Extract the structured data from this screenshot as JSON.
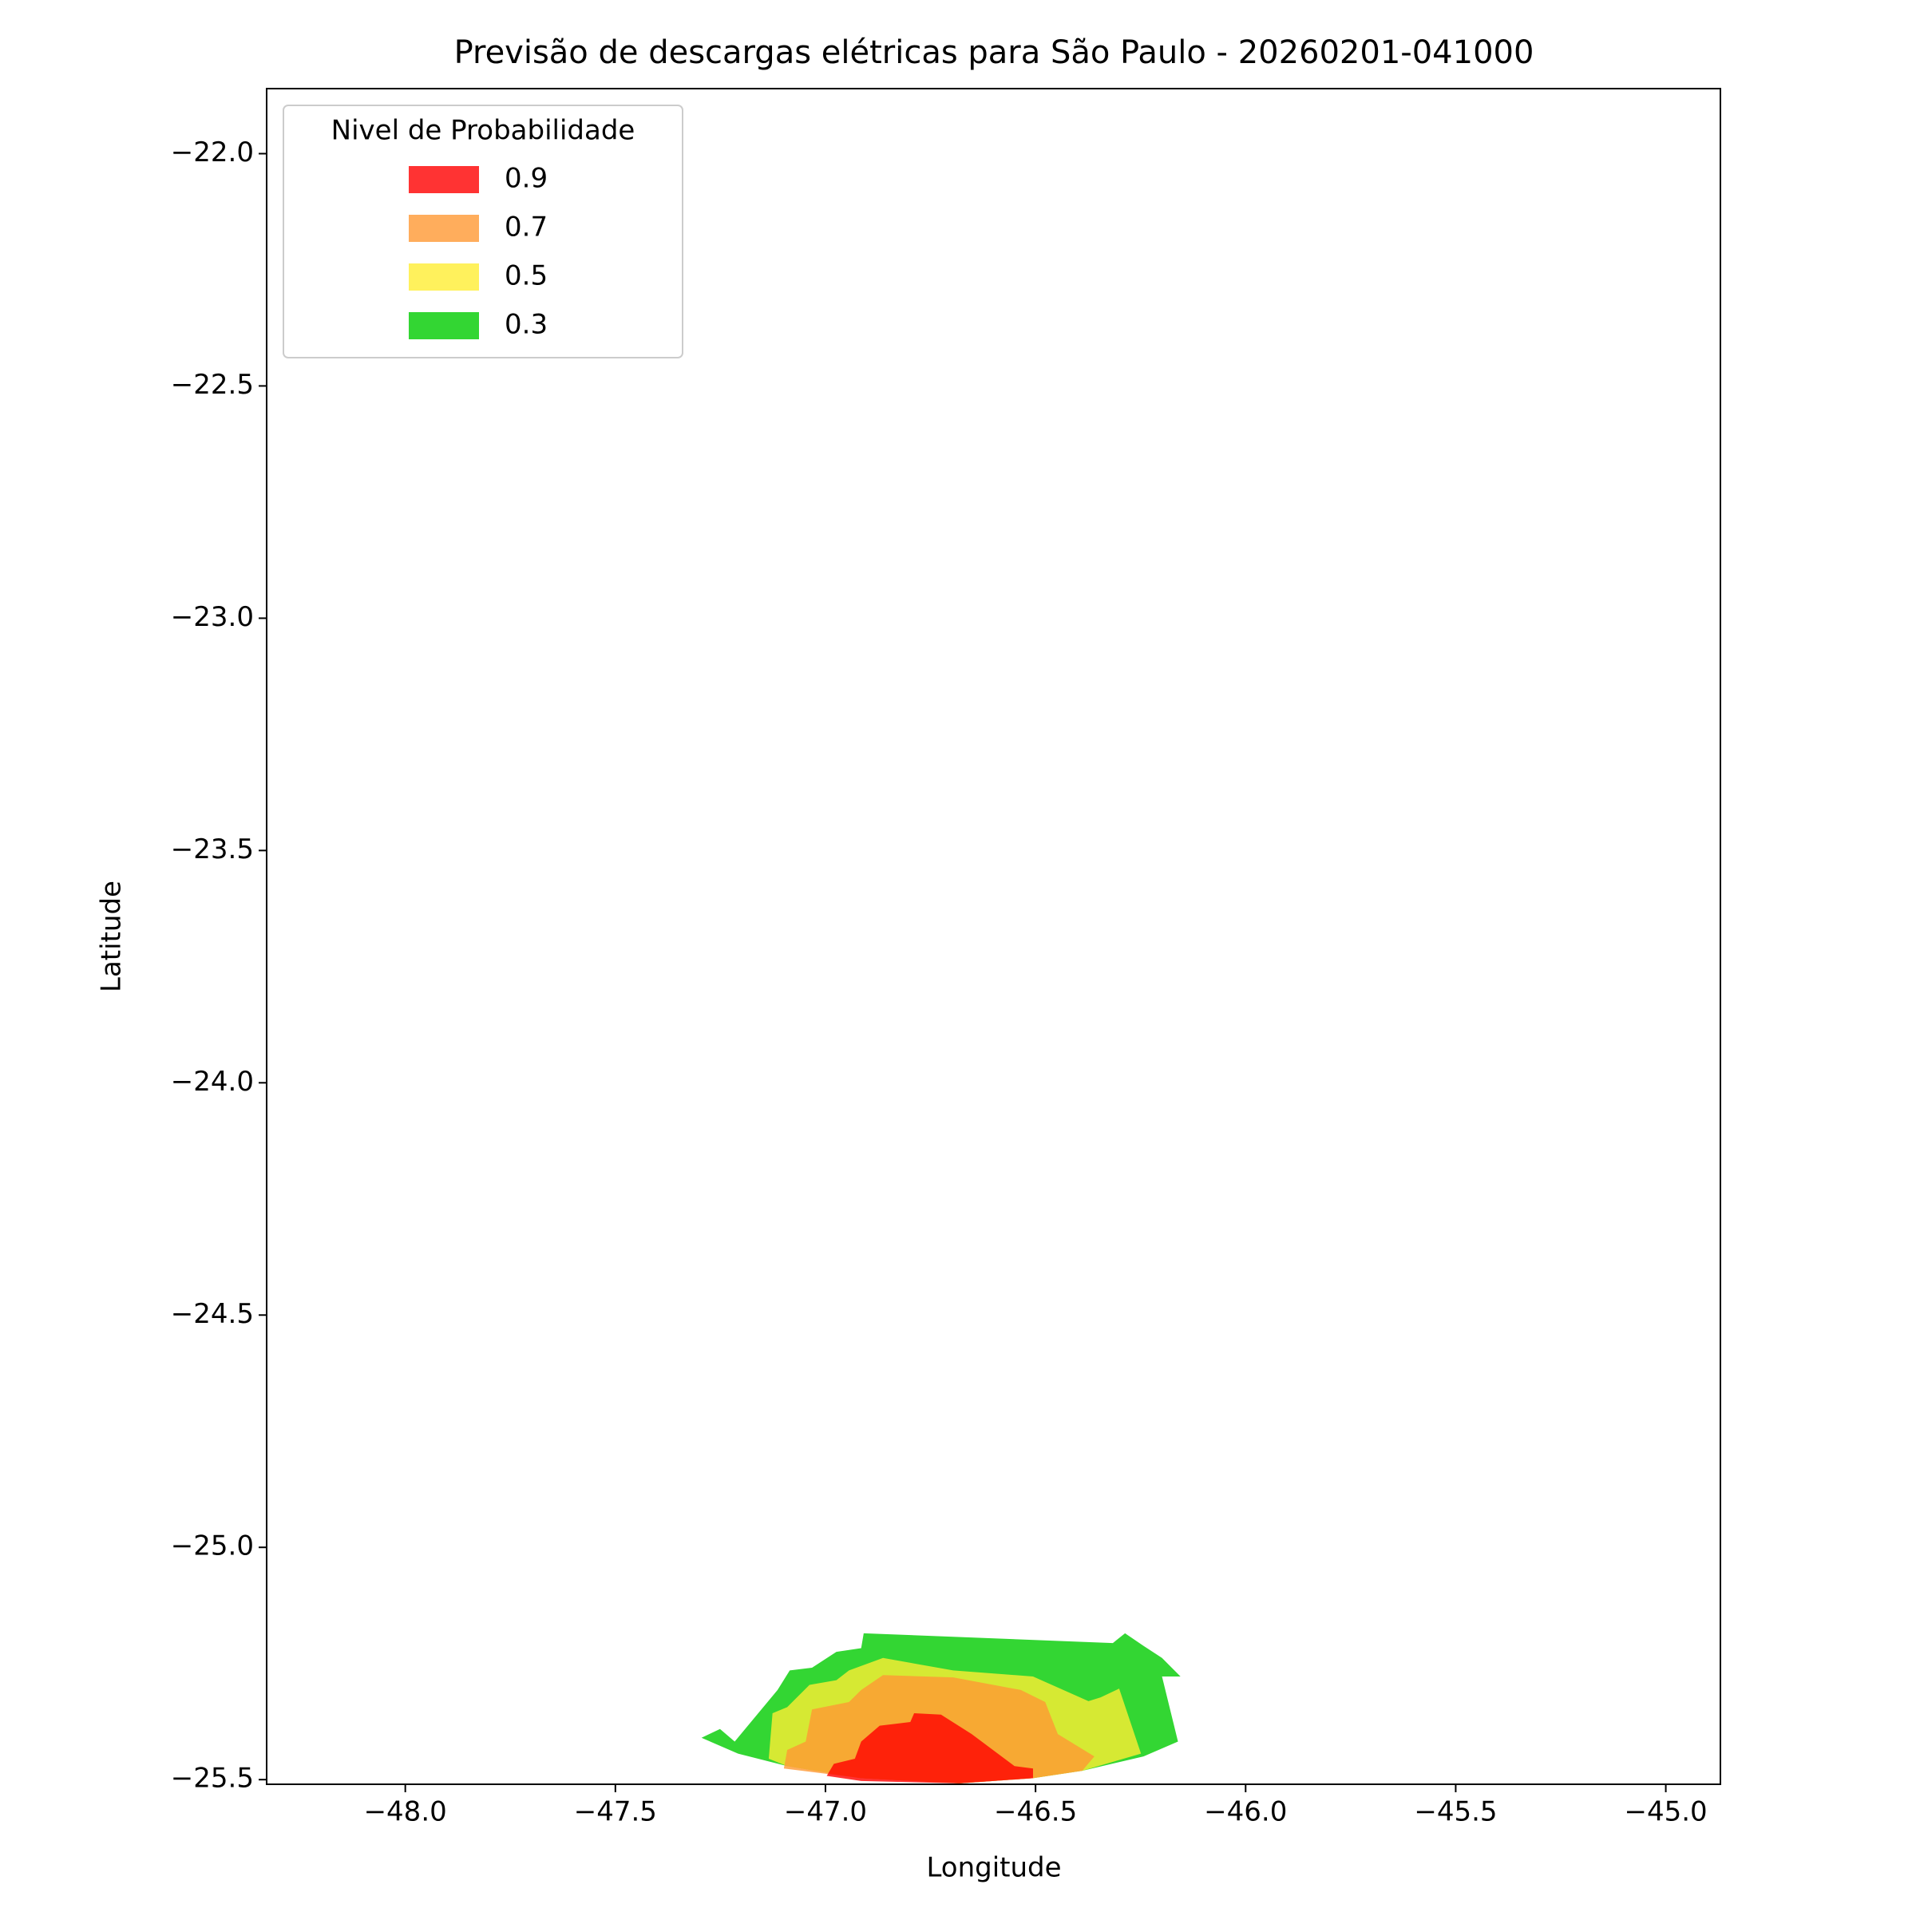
{
  "chart_data": {
    "type": "contourf",
    "title": "Previsão de descargas elétricas para São Paulo - 20260201-041000",
    "x_label": "Longitude",
    "y_label": "Latitude",
    "legend_title": "Nivel de Probabilidade",
    "legend": "upper left",
    "xlim": [
      -48.33,
      -44.87
    ],
    "ylim": [
      -25.51,
      -21.86
    ],
    "xticks": [
      {
        "value": -48,
        "label": "−48.0"
      },
      {
        "value": -47.5,
        "label": "−47.5"
      },
      {
        "value": -47,
        "label": "−47.0"
      },
      {
        "value": -46.5,
        "label": "−46.5"
      },
      {
        "value": -46,
        "label": "−46.0"
      },
      {
        "value": -45.5,
        "label": "−45.5"
      },
      {
        "value": -45,
        "label": "−45.0"
      }
    ],
    "yticks": [
      {
        "value": -22,
        "label": "−22.0"
      },
      {
        "value": -22.5,
        "label": "−22.5"
      },
      {
        "value": -23,
        "label": "−23.0"
      },
      {
        "value": -23.5,
        "label": "−23.5"
      },
      {
        "value": -24,
        "label": "−24.0"
      },
      {
        "value": -24.5,
        "label": "−24.5"
      },
      {
        "value": -25,
        "label": "−25.0"
      },
      {
        "value": -25.5,
        "label": "−25.5"
      }
    ],
    "series": [
      {
        "name": "0.9",
        "color": "#ff0000",
        "x": [
          -46.997,
          -46.98,
          -46.93,
          -46.915,
          -46.871,
          -46.798,
          -46.789,
          -46.725,
          -46.652,
          -46.55,
          -46.506,
          -46.506,
          -46.681,
          -46.915
        ],
        "y": [
          -25.492,
          -25.466,
          -25.455,
          -25.418,
          -25.384,
          -25.376,
          -25.357,
          -25.36,
          -25.402,
          -25.471,
          -25.476,
          -25.497,
          -25.508,
          -25.503
        ]
      },
      {
        "name": "0.7",
        "color": "#ff9933",
        "x": [
          -47.099,
          -47.091,
          -47.047,
          -47.032,
          -46.944,
          -46.915,
          -46.863,
          -46.696,
          -46.535,
          -46.477,
          -46.447,
          -46.36,
          -46.389,
          -46.506,
          -46.681,
          -46.915
        ],
        "y": [
          -25.476,
          -25.436,
          -25.418,
          -25.349,
          -25.333,
          -25.307,
          -25.275,
          -25.28,
          -25.307,
          -25.333,
          -25.402,
          -25.45,
          -25.481,
          -25.497,
          -25.508,
          -25.497
        ]
      },
      {
        "name": "0.5",
        "color": "#ffee33",
        "x": [
          -47.135,
          -47.126,
          -47.091,
          -47.038,
          -46.974,
          -46.944,
          -46.863,
          -46.696,
          -46.506,
          -46.374,
          -46.345,
          -46.301,
          -46.249,
          -46.389,
          -46.506,
          -46.681,
          -46.915,
          -47.091
        ],
        "y": [
          -25.455,
          -25.357,
          -25.344,
          -25.296,
          -25.286,
          -25.265,
          -25.238,
          -25.265,
          -25.278,
          -25.331,
          -25.323,
          -25.304,
          -25.444,
          -25.481,
          -25.497,
          -25.508,
          -25.497,
          -25.471
        ]
      },
      {
        "name": "0.3",
        "color": "#00cc00",
        "x": [
          -47.295,
          -47.251,
          -47.216,
          -47.114,
          -47.085,
          -47.032,
          -46.974,
          -46.915,
          -46.909,
          -46.316,
          -46.287,
          -46.243,
          -46.199,
          -46.155,
          -46.199,
          -46.161,
          -46.243,
          -46.389,
          -46.506,
          -46.681,
          -46.915,
          -47.091,
          -47.208
        ],
        "y": [
          -25.41,
          -25.391,
          -25.418,
          -25.307,
          -25.265,
          -25.259,
          -25.225,
          -25.217,
          -25.185,
          -25.206,
          -25.185,
          -25.212,
          -25.238,
          -25.278,
          -25.278,
          -25.418,
          -25.45,
          -25.481,
          -25.497,
          -25.508,
          -25.497,
          -25.471,
          -25.444
        ]
      }
    ]
  }
}
